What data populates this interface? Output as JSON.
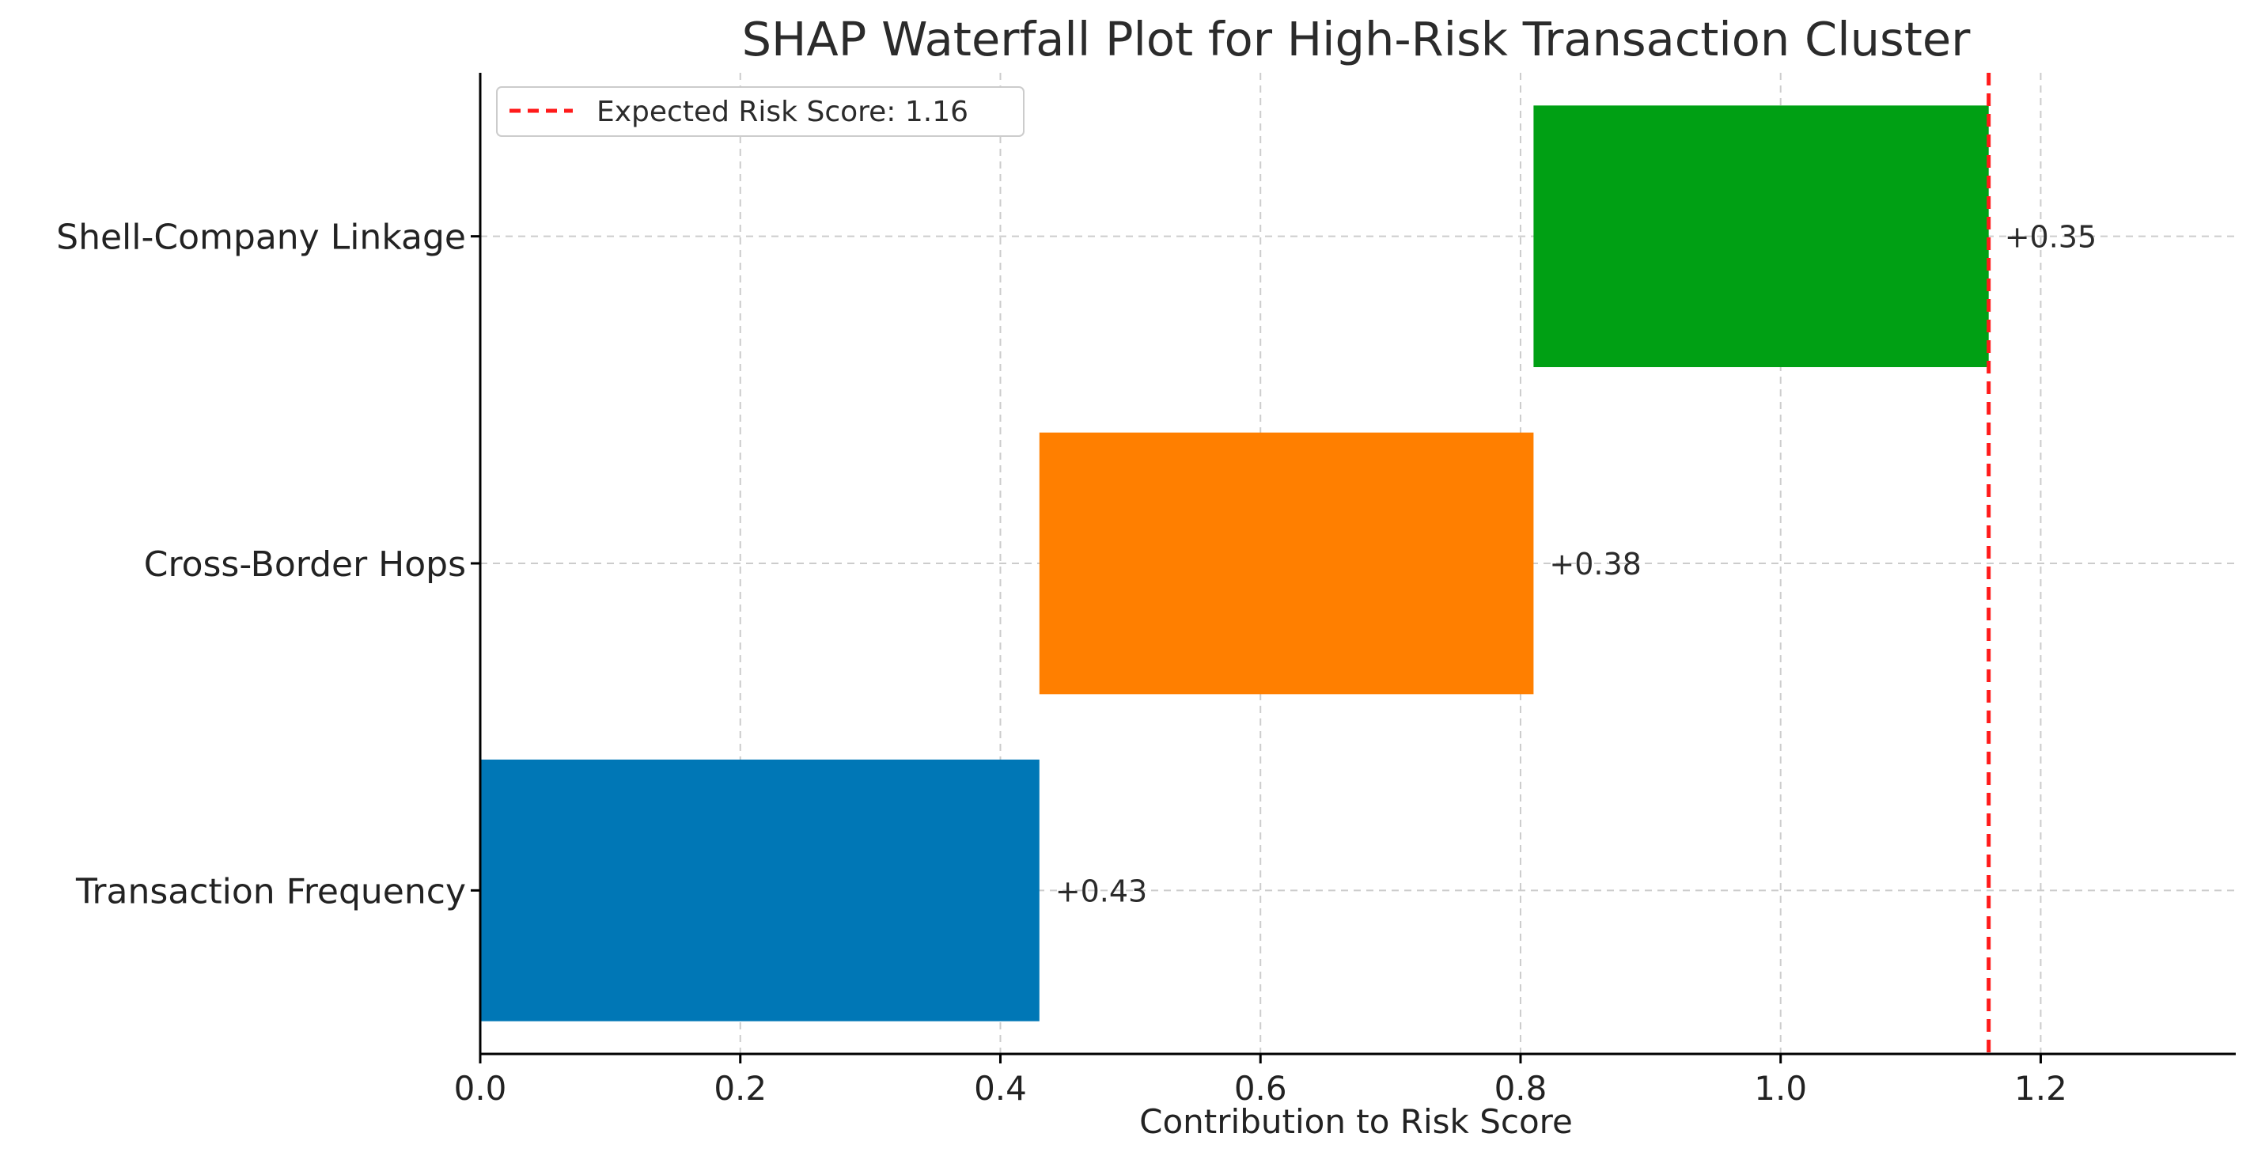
{
  "chart_data": {
    "type": "bar",
    "orientation": "horizontal",
    "variant": "waterfall",
    "title": "SHAP Waterfall Plot for High-Risk Transaction Cluster",
    "xlabel": "Contribution to Risk Score",
    "ylabel": "",
    "xlim": [
      0,
      1.35
    ],
    "xticks": [
      0.0,
      0.2,
      0.4,
      0.6,
      0.8,
      1.0,
      1.2
    ],
    "xtick_labels": [
      "0.0",
      "0.2",
      "0.4",
      "0.6",
      "0.8",
      "1.0",
      "1.2"
    ],
    "grid": true,
    "categories": [
      "Transaction Frequency",
      "Cross-Border Hops",
      "Shell-Company Linkage"
    ],
    "bars": [
      {
        "category": "Transaction Frequency",
        "start": 0.0,
        "value": 0.43,
        "label": "+0.43",
        "color": "#0077b6"
      },
      {
        "category": "Cross-Border Hops",
        "start": 0.43,
        "value": 0.38,
        "label": "+0.38",
        "color": "#ff7f00"
      },
      {
        "category": "Shell-Company Linkage",
        "start": 0.81,
        "value": 0.35,
        "label": "+0.35",
        "color": "#00a014"
      }
    ],
    "expected": {
      "value": 1.16,
      "label": "Expected Risk Score: 1.16",
      "color": "#ff1a1a",
      "style": "dashed"
    },
    "legend_position": "top-left"
  }
}
